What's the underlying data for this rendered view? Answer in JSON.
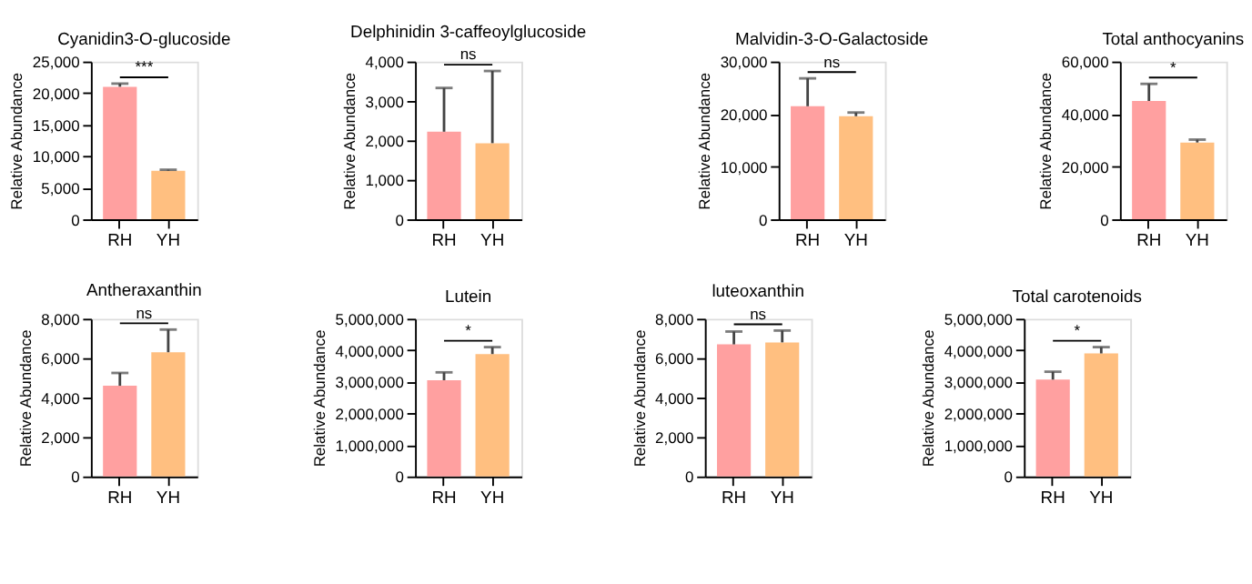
{
  "chart_data": [
    {
      "type": "bar",
      "title": "Cyanidin3-O-glucoside",
      "ylabel": "Relative Abundance",
      "categories": [
        "RH",
        "YH"
      ],
      "values": [
        21000,
        7700
      ],
      "colors": [
        "#ffa0a0",
        "#ffbf80"
      ],
      "errors": [
        [
          21000,
          21500
        ],
        [
          7700,
          7850
        ]
      ],
      "ylim": [
        0,
        25000
      ],
      "yticks": [
        0,
        {
          "value": 5000,
          "label": "5,000"
        },
        {
          "value": 10000,
          "label": "10,000"
        },
        {
          "value": 15000,
          "label": "15,000"
        },
        {
          "value": 20000,
          "label": "20,000"
        },
        {
          "value": 25000,
          "label": "25,000"
        }
      ],
      "annotations": [
        "***"
      ]
    },
    {
      "type": "bar",
      "title": "Delphinidin 3-caffeoylglucoside",
      "ylabel": "Relative Abundance",
      "categories": [
        "RH",
        "YH"
      ],
      "values": [
        2220,
        1930
      ],
      "colors": [
        "#ffa0a0",
        "#ffbf80"
      ],
      "errors": [
        [
          2220,
          3330
        ],
        [
          1930,
          3760
        ]
      ],
      "ylim": [
        0,
        4000
      ],
      "yticks": [
        0,
        {
          "value": 1000,
          "label": "1,000"
        },
        {
          "value": 2000,
          "label": "2,000"
        },
        {
          "value": 3000,
          "label": "3,000"
        },
        {
          "value": 4000,
          "label": "4,000"
        }
      ],
      "annotations": [
        "ns"
      ]
    },
    {
      "type": "bar",
      "title": "Malvidin-3-O-Galactoside",
      "ylabel": "Relative Abundance",
      "categories": [
        "RH",
        "YH"
      ],
      "values": [
        21500,
        19600
      ],
      "colors": [
        "#ffa0a0",
        "#ffbf80"
      ],
      "errors": [
        [
          21500,
          26800
        ],
        [
          19600,
          20300
        ]
      ],
      "ylim": [
        0,
        30000
      ],
      "yticks": [
        0,
        {
          "value": 10000,
          "label": "10,000"
        },
        {
          "value": 20000,
          "label": "20,000"
        },
        {
          "value": 30000,
          "label": "30,000"
        }
      ],
      "annotations": [
        "ns"
      ]
    },
    {
      "type": "bar",
      "title": "Total anthocyanins",
      "ylabel": "Relative Abundance",
      "categories": [
        "RH",
        "YH"
      ],
      "values": [
        45000,
        29200
      ],
      "colors": [
        "#ffa0a0",
        "#ffbf80"
      ],
      "errors": [
        [
          45000,
          51500
        ],
        [
          29200,
          30300
        ]
      ],
      "ylim": [
        0,
        60000
      ],
      "yticks": [
        0,
        {
          "value": 20000,
          "label": "20,000"
        },
        {
          "value": 40000,
          "label": "40,000"
        },
        {
          "value": 60000,
          "label": "60,000"
        }
      ],
      "annotations": [
        "*"
      ]
    },
    {
      "type": "bar",
      "title": "Antheraxanthin",
      "ylabel": "Relative Abundance",
      "categories": [
        "RH",
        "YH"
      ],
      "values": [
        4600,
        6300
      ],
      "colors": [
        "#ffa0a0",
        "#ffbf80"
      ],
      "errors": [
        [
          4600,
          5250
        ],
        [
          6300,
          7450
        ]
      ],
      "ylim": [
        0,
        8000
      ],
      "yticks": [
        0,
        {
          "value": 2000,
          "label": "2,000"
        },
        {
          "value": 4000,
          "label": "4,000"
        },
        {
          "value": 6000,
          "label": "6,000"
        },
        {
          "value": 8000,
          "label": "8,000"
        }
      ],
      "annotations": [
        "ns"
      ]
    },
    {
      "type": "bar",
      "title": "Lutein",
      "ylabel": "Relative Abundance",
      "categories": [
        "RH",
        "YH"
      ],
      "values": [
        3050000,
        3880000
      ],
      "colors": [
        "#ffa0a0",
        "#ffbf80"
      ],
      "errors": [
        [
          3050000,
          3300000
        ],
        [
          3880000,
          4100000
        ]
      ],
      "ylim": [
        0,
        5000000
      ],
      "yticks": [
        0,
        {
          "value": 1000000,
          "label": "1,000,000"
        },
        {
          "value": 2000000,
          "label": "2,000,000"
        },
        {
          "value": 3000000,
          "label": "3,000,000"
        },
        {
          "value": 4000000,
          "label": "4,000,000"
        },
        {
          "value": 5000000,
          "label": "5,000,000"
        }
      ],
      "annotations": [
        "*"
      ]
    },
    {
      "type": "bar",
      "title": "luteoxanthin",
      "ylabel": "Relative Abundance",
      "categories": [
        "RH",
        "YH"
      ],
      "values": [
        6700,
        6800
      ],
      "colors": [
        "#ffa0a0",
        "#ffbf80"
      ],
      "errors": [
        [
          6700,
          7350
        ],
        [
          6800,
          7400
        ]
      ],
      "ylim": [
        0,
        8000
      ],
      "yticks": [
        0,
        {
          "value": 2000,
          "label": "2,000"
        },
        {
          "value": 4000,
          "label": "4,000"
        },
        {
          "value": 6000,
          "label": "6,000"
        },
        {
          "value": 8000,
          "label": "8,000"
        }
      ],
      "annotations": [
        "ns"
      ]
    },
    {
      "type": "bar",
      "title": "Total carotenoids",
      "ylabel": "Relative Abundance",
      "categories": [
        "RH",
        "YH"
      ],
      "values": [
        3070000,
        3900000
      ],
      "colors": [
        "#ffa0a0",
        "#ffbf80"
      ],
      "errors": [
        [
          3070000,
          3320000
        ],
        [
          3900000,
          4100000
        ]
      ],
      "ylim": [
        0,
        5000000
      ],
      "yticks": [
        0,
        {
          "value": 1000000,
          "label": "1,000,000"
        },
        {
          "value": 2000000,
          "label": "2,000,000"
        },
        {
          "value": 3000000,
          "label": "3,000,000"
        },
        {
          "value": 4000000,
          "label": "4,000,000"
        },
        {
          "value": 5000000,
          "label": "5,000,000"
        }
      ],
      "annotations": [
        "*"
      ]
    }
  ]
}
